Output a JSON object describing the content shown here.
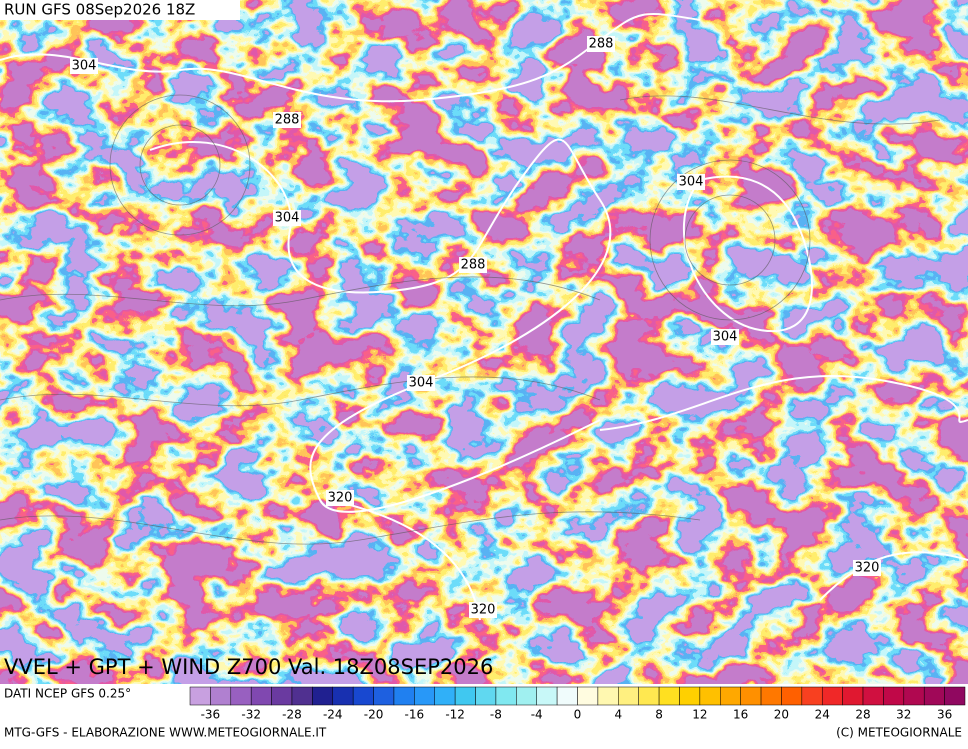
{
  "header": "RUN GFS 08Sep2026 18Z",
  "contour_labels": [
    304,
    288,
    288,
    304,
    288,
    304,
    304,
    304,
    320,
    320,
    320
  ],
  "title": "VVEL + GPT + WIND Z700 Val. 18Z08SEP2026",
  "legend": {
    "source": "DATI NCEP GFS 0.25°",
    "ticks": [
      -36,
      -32,
      -28,
      -24,
      -20,
      -16,
      -12,
      -8,
      -4,
      0,
      4,
      8,
      12,
      16,
      20,
      24,
      28,
      32,
      36
    ],
    "colors": [
      "#c8a0e0",
      "#b080d0",
      "#9860c0",
      "#8048b0",
      "#6a3aa0",
      "#503090",
      "#202090",
      "#1830b0",
      "#1848d0",
      "#1e60e0",
      "#2080f0",
      "#2898f8",
      "#30b0f8",
      "#40c8f0",
      "#60d8f0",
      "#80e8f0",
      "#a0f0f0",
      "#c8f8f8",
      "#f0fcfc",
      "#fffce0",
      "#fff8b0",
      "#fff080",
      "#ffe850",
      "#ffe020",
      "#ffd000",
      "#ffc000",
      "#ffa800",
      "#ff9000",
      "#ff7800",
      "#ff6000",
      "#f84020",
      "#f02828",
      "#e01830",
      "#d01040",
      "#c00848",
      "#b00850",
      "#a00858",
      "#900860"
    ]
  },
  "footer": {
    "left": "MTG-GFS - ELABORAZIONE WWW.METEOGIORNALE.IT",
    "right": "(C) METEOGIORNALE"
  }
}
